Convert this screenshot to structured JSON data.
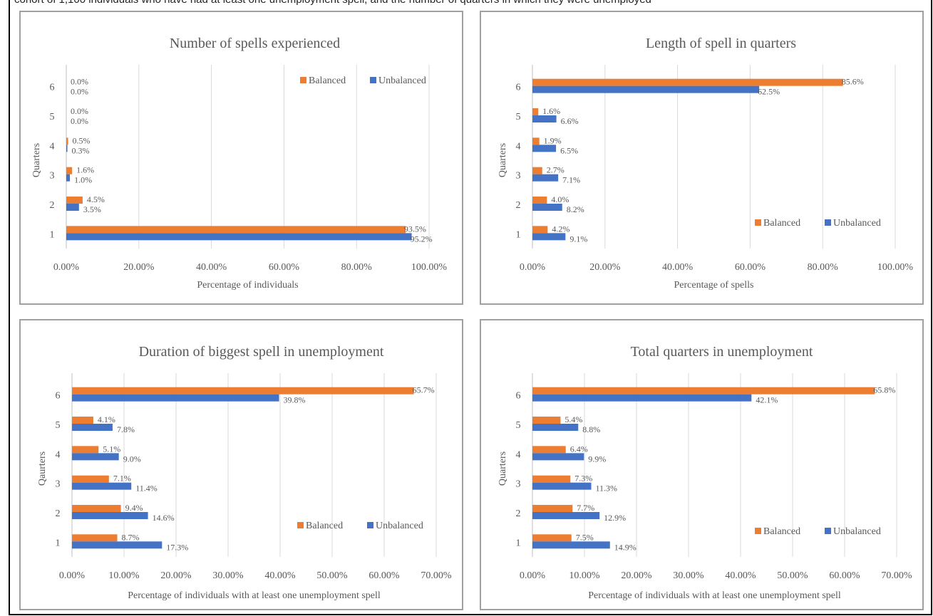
{
  "header_fragment": "cohort of 1,100 individuals who have had at least one unemployment spell, and the number of quarters in which they were unemployed",
  "colors": {
    "balanced": "#ED7D31",
    "unbalanced": "#4472C4",
    "grid": "#d9d9d9",
    "axis": "#bfbfbf"
  },
  "chart_data": [
    {
      "type": "bar",
      "orientation": "horizontal",
      "title": "Number of spells experienced",
      "xlabel": "Percentage of individuals",
      "ylabel": "Quarters",
      "categories": [
        "1",
        "2",
        "3",
        "4",
        "5",
        "6"
      ],
      "series": [
        {
          "name": "Balanced",
          "values": [
            93.5,
            4.5,
            1.6,
            0.5,
            0.0,
            0.0
          ],
          "labels": [
            "93.5%",
            "4.5%",
            "1.6%",
            "0.5%",
            "0.0%",
            "0.0%"
          ]
        },
        {
          "name": "Unbalanced",
          "values": [
            95.2,
            3.5,
            1.0,
            0.3,
            0.0,
            0.0
          ],
          "labels": [
            "95.2%",
            "3.5%",
            "1.0%",
            "0.3%",
            "0.0%",
            "0.0%"
          ]
        }
      ],
      "xlim": [
        0,
        100
      ],
      "xticks": [
        "0.00%",
        "20.00%",
        "40.00%",
        "60.00%",
        "80.00%",
        "100.00%"
      ],
      "legend": "top-right",
      "grid": true
    },
    {
      "type": "bar",
      "orientation": "horizontal",
      "title": "Length of spell in quarters",
      "xlabel": "Percentage of spells",
      "ylabel": "Quarters",
      "categories": [
        "1",
        "2",
        "3",
        "4",
        "5",
        "6"
      ],
      "series": [
        {
          "name": "Balanced",
          "values": [
            4.2,
            4.0,
            2.7,
            1.9,
            1.6,
            85.6
          ],
          "labels": [
            "4.2%",
            "4.0%",
            "2.7%",
            "1.9%",
            "1.6%",
            "85.6%"
          ]
        },
        {
          "name": "Unbalanced",
          "values": [
            9.1,
            8.2,
            7.1,
            6.5,
            6.6,
            62.5
          ],
          "labels": [
            "9.1%",
            "8.2%",
            "7.1%",
            "6.5%",
            "6.6%",
            "62.5%"
          ]
        }
      ],
      "xlim": [
        0,
        100
      ],
      "xticks": [
        "0.00%",
        "20.00%",
        "40.00%",
        "60.00%",
        "80.00%",
        "100.00%"
      ],
      "legend": "bottom-right",
      "grid": true
    },
    {
      "type": "bar",
      "orientation": "horizontal",
      "title": "Duration of biggest spell in unemployment",
      "xlabel": "Percentage of individuals with at least one unemployment spell",
      "ylabel": "Qaurters",
      "categories": [
        "1",
        "2",
        "3",
        "4",
        "5",
        "6"
      ],
      "series": [
        {
          "name": "Balanced",
          "values": [
            8.7,
            9.4,
            7.1,
            5.1,
            4.1,
            65.7
          ],
          "labels": [
            "8.7%",
            "9.4%",
            "7.1%",
            "5.1%",
            "4.1%",
            "65.7%"
          ]
        },
        {
          "name": "Unbalanced",
          "values": [
            17.3,
            14.6,
            11.4,
            9.0,
            7.8,
            39.8
          ],
          "labels": [
            "17.3%",
            "14.6%",
            "11.4%",
            "9.0%",
            "7.8%",
            "39.8%"
          ]
        }
      ],
      "xlim": [
        0,
        70
      ],
      "xticks": [
        "0.00%",
        "10.00%",
        "20.00%",
        "30.00%",
        "40.00%",
        "50.00%",
        "60.00%",
        "70.00%"
      ],
      "legend": "bottom-right",
      "grid": true
    },
    {
      "type": "bar",
      "orientation": "horizontal",
      "title": "Total quarters in unemployment",
      "xlabel": "Percentage of individuals with at least one unemployment spell",
      "ylabel": "Quarters",
      "categories": [
        "1",
        "2",
        "3",
        "4",
        "5",
        "6"
      ],
      "series": [
        {
          "name": "Balanced",
          "values": [
            7.5,
            7.7,
            7.3,
            6.4,
            5.4,
            65.8
          ],
          "labels": [
            "7.5%",
            "7.7%",
            "7.3%",
            "6.4%",
            "5.4%",
            "65.8%"
          ]
        },
        {
          "name": "Unbalanced",
          "values": [
            14.9,
            12.9,
            11.3,
            9.9,
            8.8,
            42.1
          ],
          "labels": [
            "14.9%",
            "12.9%",
            "11.3%",
            "9.9%",
            "8.8%",
            "42.1%"
          ]
        }
      ],
      "xlim": [
        0,
        70
      ],
      "xticks": [
        "0.00%",
        "10.00%",
        "20.00%",
        "30.00%",
        "40.00%",
        "50.00%",
        "60.00%",
        "70.00%"
      ],
      "legend": "bottom-right",
      "grid": true
    }
  ]
}
